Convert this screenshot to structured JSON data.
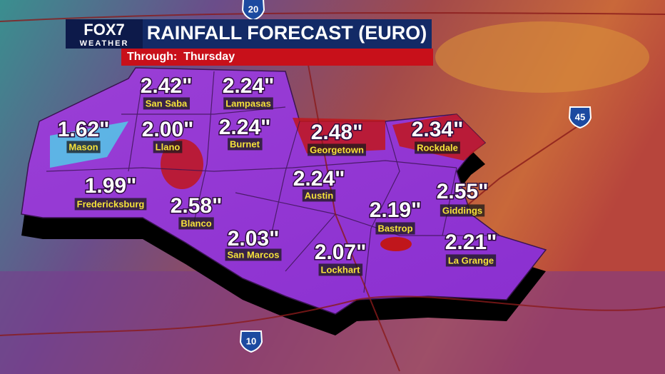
{
  "header": {
    "logo": "FOX7",
    "logo_sub": "WEATHER",
    "title": "RAINFALL FORECAST (EURO)",
    "subtitle": "Through:  Thursday"
  },
  "highways": [
    "20",
    "45",
    "10"
  ],
  "locations": [
    {
      "name": "San Saba",
      "amount": "2.42\""
    },
    {
      "name": "Lampasas",
      "amount": "2.24\""
    },
    {
      "name": "Mason",
      "amount": "1.62\""
    },
    {
      "name": "Llano",
      "amount": "2.00\""
    },
    {
      "name": "Burnet",
      "amount": "2.24\""
    },
    {
      "name": "Georgetown",
      "amount": "2.48\""
    },
    {
      "name": "Rockdale",
      "amount": "2.34\""
    },
    {
      "name": "Austin",
      "amount": "2.24\""
    },
    {
      "name": "Fredericksburg",
      "amount": "1.99\""
    },
    {
      "name": "Giddings",
      "amount": "2.55\""
    },
    {
      "name": "Blanco",
      "amount": "2.58\""
    },
    {
      "name": "Bastrop",
      "amount": "2.19\""
    },
    {
      "name": "San Marcos",
      "amount": "2.03\""
    },
    {
      "name": "La Grange",
      "amount": "2.21\""
    },
    {
      "name": "Lockhart",
      "amount": "2.07\""
    }
  ]
}
